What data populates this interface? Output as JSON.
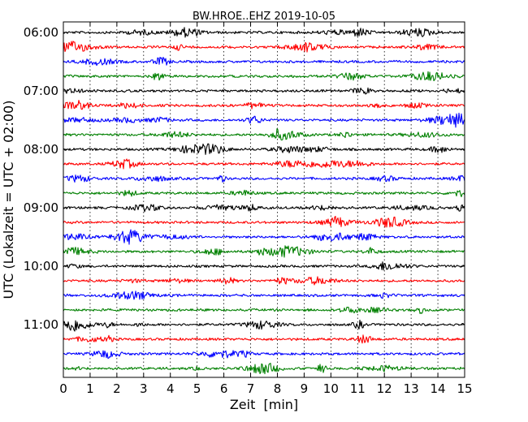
{
  "chart_data": {
    "type": "line",
    "title": "BW.HROE..EHZ 2019-10-05",
    "xlabel": "Zeit  [min]",
    "ylabel": "UTC (Lokalzeit = UTC + 02:00)",
    "xlim": [
      0,
      15
    ],
    "x_ticks": [
      "0",
      "1",
      "2",
      "3",
      "4",
      "5",
      "6",
      "7",
      "8",
      "9",
      "10",
      "11",
      "12",
      "13",
      "14",
      "15"
    ],
    "y_tick_labels": [
      "06:00",
      "07:00",
      "08:00",
      "09:00",
      "10:00",
      "11:00"
    ],
    "grid": "vertical dotted",
    "interval_minutes": 15,
    "trace_colors": [
      "#000000",
      "#ff0000",
      "#0000ff",
      "#008000"
    ],
    "traces": [
      {
        "start": "06:00",
        "color": "#000000"
      },
      {
        "start": "06:15",
        "color": "#ff0000"
      },
      {
        "start": "06:30",
        "color": "#0000ff"
      },
      {
        "start": "06:45",
        "color": "#008000"
      },
      {
        "start": "07:00",
        "color": "#000000"
      },
      {
        "start": "07:15",
        "color": "#ff0000"
      },
      {
        "start": "07:30",
        "color": "#0000ff"
      },
      {
        "start": "07:45",
        "color": "#008000"
      },
      {
        "start": "08:00",
        "color": "#000000"
      },
      {
        "start": "08:15",
        "color": "#ff0000"
      },
      {
        "start": "08:30",
        "color": "#0000ff"
      },
      {
        "start": "08:45",
        "color": "#008000"
      },
      {
        "start": "09:00",
        "color": "#000000"
      },
      {
        "start": "09:15",
        "color": "#ff0000"
      },
      {
        "start": "09:30",
        "color": "#0000ff"
      },
      {
        "start": "09:45",
        "color": "#008000"
      },
      {
        "start": "10:00",
        "color": "#000000"
      },
      {
        "start": "10:15",
        "color": "#ff0000"
      },
      {
        "start": "10:30",
        "color": "#0000ff"
      },
      {
        "start": "10:45",
        "color": "#008000"
      },
      {
        "start": "11:00",
        "color": "#000000"
      },
      {
        "start": "11:15",
        "color": "#ff0000"
      },
      {
        "start": "11:30",
        "color": "#0000ff"
      },
      {
        "start": "11:45",
        "color": "#008000"
      }
    ]
  }
}
